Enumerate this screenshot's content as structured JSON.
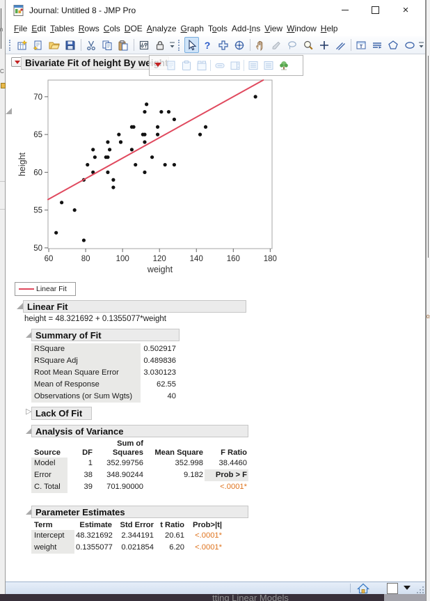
{
  "window": {
    "title": "Journal: Untitled 8 - JMP Pro",
    "controls": [
      "minimize",
      "maximize",
      "close"
    ]
  },
  "menu_bar": [
    {
      "label": "File",
      "u": "F"
    },
    {
      "label": "Edit",
      "u": "E"
    },
    {
      "label": "Tables",
      "u": "T"
    },
    {
      "label": "Rows",
      "u": "R"
    },
    {
      "label": "Cols",
      "u": "C"
    },
    {
      "label": "DOE",
      "u": "D"
    },
    {
      "label": "Analyze",
      "u": "A"
    },
    {
      "label": "Graph",
      "u": "G"
    },
    {
      "label": "Tools",
      "u": "o"
    },
    {
      "label": "Add-Ins",
      "u": "I"
    },
    {
      "label": "View",
      "u": "V"
    },
    {
      "label": "Window",
      "u": "W"
    },
    {
      "label": "Help",
      "u": "H"
    }
  ],
  "toolbar": {
    "selected_tool": "arrow-tool-icon",
    "groups": [
      {
        "icons": [
          "new-journal-icon",
          "new-script-icon",
          "open-icon",
          "save-icon",
          "separator",
          "cut-icon",
          "copy-icon",
          "paste-icon",
          "separator",
          "settings-icon",
          "lock-icon",
          "overflow-icon"
        ]
      },
      {
        "icons": [
          "arrow-tool-icon",
          "help-tool-icon",
          "crosshair-tool-icon",
          "target-tool-icon",
          "separator",
          "grabber-tool-icon",
          "brush-tool-icon",
          "lasso-tool-icon",
          "magnifier-tool-icon",
          "plus-tool-icon",
          "line-annotation-icon",
          "separator",
          "text-annotation-icon",
          "arrow-annotation-icon",
          "polygon-annotation-icon",
          "oval-annotation-icon",
          "overflow-icon"
        ]
      }
    ]
  },
  "hover_toolbar": {
    "icons": [
      "red-triangle-icon",
      "ghost-page-icon",
      "ghost-clipboard-icon",
      "ghost-window-icon",
      "separator",
      "ghost-pill-icon",
      "ghost-spinbox-icon",
      "separator",
      "ghost-doc-icon",
      "ghost-doc-icon",
      "tree-map-icon"
    ]
  },
  "report": {
    "title": "Bivariate Fit of height By weight",
    "linear_fit": {
      "title": "Linear Fit",
      "equation": "height = 48.321692 + 0.1355077*weight"
    },
    "summary_of_fit": {
      "title": "Summary of Fit",
      "rows": [
        [
          "RSquare",
          "0.502917"
        ],
        [
          "RSquare Adj",
          "0.489836"
        ],
        [
          "Root Mean Square Error",
          "3.030123"
        ],
        [
          "Mean of Response",
          "62.55"
        ],
        [
          "Observations (or Sum Wgts)",
          "40"
        ]
      ]
    },
    "lack_of_fit": {
      "title": "Lack Of Fit",
      "collapsed": true
    },
    "anova": {
      "title": "Analysis of Variance",
      "headers": [
        "Source",
        "DF",
        "Sum of\nSquares",
        "Mean Square",
        "F Ratio"
      ],
      "rows": [
        [
          "Model",
          "1",
          "352.99756",
          "352.998",
          "38.4460"
        ],
        [
          "Error",
          "38",
          "348.90244",
          "9.182",
          {
            "t": "Prob > F",
            "s": "head"
          }
        ],
        [
          "C. Total",
          "39",
          "701.90000",
          "",
          {
            "t": "<.0001*",
            "s": "sig"
          }
        ]
      ]
    },
    "parameter_estimates": {
      "title": "Parameter Estimates",
      "headers": [
        "Term",
        "Estimate",
        "Std Error",
        "t Ratio",
        "Prob>|t|"
      ],
      "rows": [
        [
          "Intercept",
          "48.321692",
          "2.344191",
          "20.61",
          {
            "t": "<.0001*",
            "s": "sig"
          }
        ],
        [
          "weight",
          "0.1355077",
          "0.021854",
          "6.20",
          {
            "t": "<.0001*",
            "s": "sig"
          }
        ]
      ]
    }
  },
  "chart_data": {
    "type": "scatter",
    "title": "Bivariate Fit of height By weight",
    "xlabel": "weight",
    "ylabel": "height",
    "xlim": [
      59.6,
      181.0
    ],
    "ylim": [
      49.9,
      72.2
    ],
    "xticks": [
      60,
      80,
      100,
      120,
      140,
      160,
      180
    ],
    "yticks": [
      50,
      55,
      60,
      65,
      70
    ],
    "grid": false,
    "legend_position": "below-left",
    "fit_line": {
      "label": "Linear Fit",
      "intercept": 48.321692,
      "slope": 0.1355077,
      "color": "#e0495e"
    },
    "points": [
      [
        95,
        59
      ],
      [
        123,
        61
      ],
      [
        74,
        55
      ],
      [
        145,
        66
      ],
      [
        64,
        52
      ],
      [
        84,
        60
      ],
      [
        128,
        61
      ],
      [
        79,
        51
      ],
      [
        112,
        60
      ],
      [
        107,
        61
      ],
      [
        67,
        56
      ],
      [
        98,
        65
      ],
      [
        105,
        63
      ],
      [
        95,
        58
      ],
      [
        79,
        59
      ],
      [
        81,
        61
      ],
      [
        91,
        62
      ],
      [
        142,
        65
      ],
      [
        84,
        63
      ],
      [
        85,
        62
      ],
      [
        93,
        63
      ],
      [
        99,
        64
      ],
      [
        119,
        65
      ],
      [
        92,
        64
      ],
      [
        112,
        68
      ],
      [
        99,
        64
      ],
      [
        113,
        69
      ],
      [
        92,
        62
      ],
      [
        112,
        64
      ],
      [
        128,
        67
      ],
      [
        111,
        65
      ],
      [
        105,
        66
      ],
      [
        119,
        66
      ],
      [
        106,
        66
      ],
      [
        112,
        65
      ],
      [
        92,
        60
      ],
      [
        125,
        68
      ],
      [
        116,
        62
      ],
      [
        121,
        68
      ],
      [
        172,
        70
      ]
    ]
  },
  "status_bar": {
    "icons": [
      "home-icon",
      "white-square-button",
      "dropdown-caret",
      "resize-grip"
    ]
  },
  "background": {
    "bottom_window_text": "tting Linear Models",
    "right_edge_fragment": "0:"
  },
  "colors": {
    "fit_line": "#e0495e",
    "significance": "#df731d",
    "header_bar_bg": "#ebebeb",
    "table_label_bg": "#e9e9e7",
    "selected_tool_bg": "#cfe4f9"
  }
}
